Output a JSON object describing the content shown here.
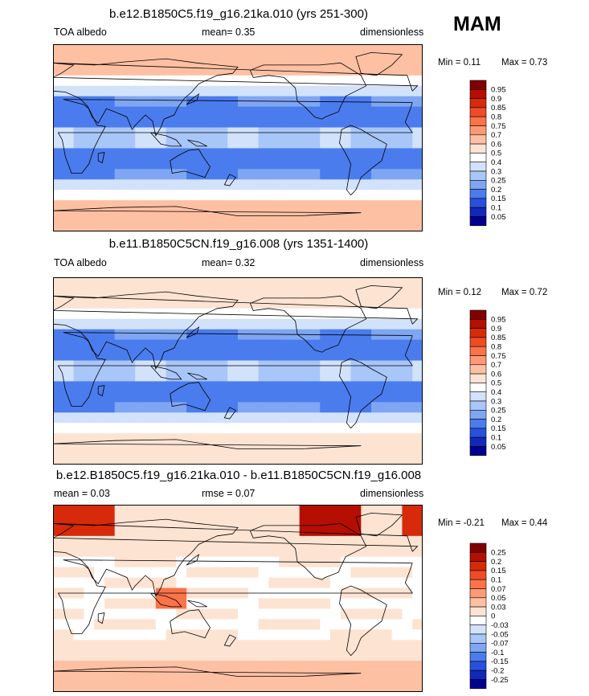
{
  "season": "MAM",
  "chart_data": [
    {
      "type": "heatmap",
      "title": "b.e12.B1850C5.f19_g16.21ka.010 (yrs 251-300)",
      "left_label": "TOA albedo",
      "center_label": "mean=  0.35",
      "right_label": "dimensionless",
      "min_text": "Min =   0.11",
      "max_text": "Max =   0.73",
      "variable": "TOA albedo",
      "mean": 0.35,
      "min": 0.11,
      "max": 0.73,
      "colorbar_levels": [
        "0.95",
        "0.9",
        "0.85",
        "0.8",
        "0.75",
        "0.7",
        "0.6",
        "0.5",
        "0.4",
        "0.3",
        "0.25",
        "0.2",
        "0.15",
        "0.1",
        "0.05"
      ],
      "colorbar_colors": [
        "#800000",
        "#b40f02",
        "#d62a0a",
        "#ee4c25",
        "#fa7349",
        "#fd9a75",
        "#fec0a2",
        "#fde3d2",
        "#ffffff",
        "#d2e2fb",
        "#a8c6f7",
        "#7ea6f2",
        "#4b7ced",
        "#2850dd",
        "#1228b8",
        "#020090"
      ]
    },
    {
      "type": "heatmap",
      "title": "b.e11.B1850C5CN.f19_g16.008 (yrs 1351-1400)",
      "left_label": "TOA albedo",
      "center_label": "mean=  0.32",
      "right_label": "dimensionless",
      "min_text": "Min =  0.12",
      "max_text": "Max =   0.72",
      "variable": "TOA albedo",
      "mean": 0.32,
      "min": 0.12,
      "max": 0.72,
      "colorbar_levels": [
        "0.95",
        "0.9",
        "0.85",
        "0.8",
        "0.75",
        "0.7",
        "0.6",
        "0.5",
        "0.4",
        "0.3",
        "0.25",
        "0.2",
        "0.15",
        "0.1",
        "0.05"
      ],
      "colorbar_colors": [
        "#800000",
        "#b40f02",
        "#d62a0a",
        "#ee4c25",
        "#fa7349",
        "#fd9a75",
        "#fec0a2",
        "#fde3d2",
        "#ffffff",
        "#d2e2fb",
        "#a8c6f7",
        "#7ea6f2",
        "#4b7ced",
        "#2850dd",
        "#1228b8",
        "#020090"
      ]
    },
    {
      "type": "heatmap",
      "title": "b.e12.B1850C5.f19_g16.21ka.010 - b.e11.B1850C5CN.f19_g16.008",
      "left_label": "mean =   0.03",
      "center_label": "rmse =   0.07",
      "right_label": "dimensionless",
      "min_text": "Min =  -0.21",
      "max_text": "Max =   0.44",
      "mean": 0.03,
      "rmse": 0.07,
      "min": -0.21,
      "max": 0.44,
      "colorbar_levels": [
        "0.25",
        "0.2",
        "0.15",
        "0.1",
        "0.07",
        "0.05",
        "0.03",
        "0",
        "-0.03",
        "-0.05",
        "-0.07",
        "-0.1",
        "-0.15",
        "-0.2",
        "-0.25"
      ],
      "colorbar_colors": [
        "#800000",
        "#b40f02",
        "#d62a0a",
        "#ee4c25",
        "#fa7349",
        "#fd9a75",
        "#fec0a2",
        "#fde3d2",
        "#ffffff",
        "#d2e2fb",
        "#a8c6f7",
        "#7ea6f2",
        "#4b7ced",
        "#2850dd",
        "#1228b8",
        "#020090"
      ]
    }
  ]
}
